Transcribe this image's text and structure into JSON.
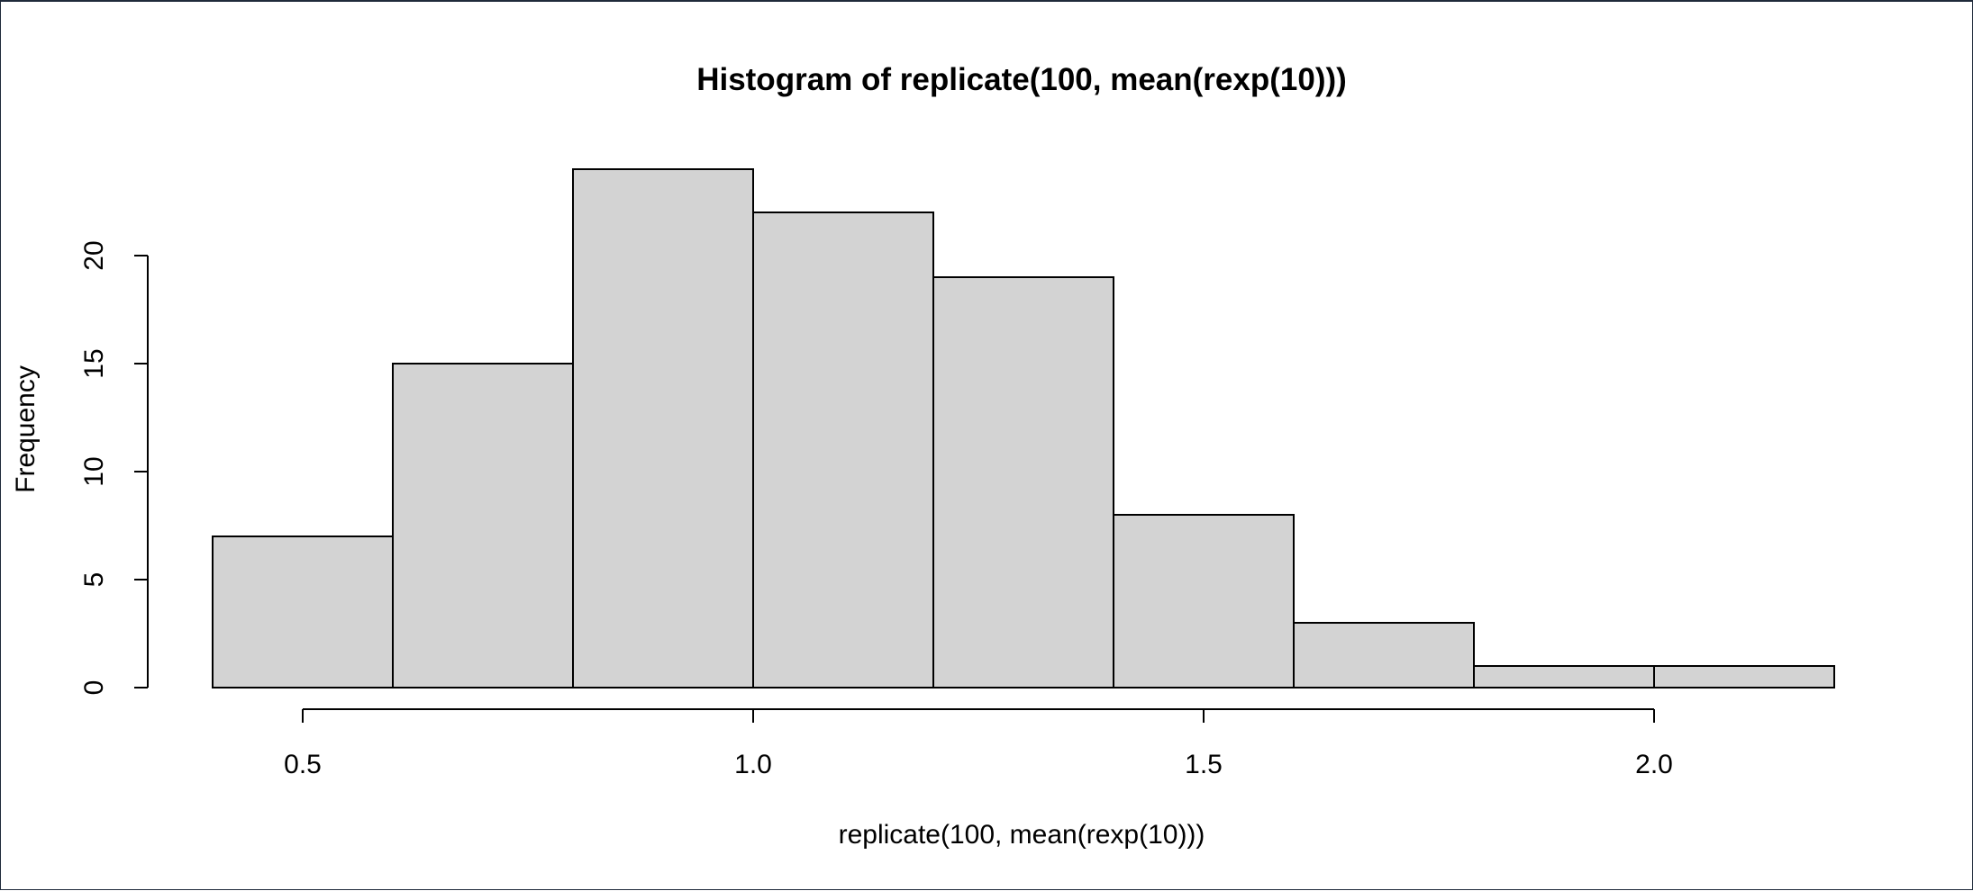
{
  "chart_data": {
    "type": "bar",
    "title": "Histogram of replicate(100, mean(rexp(10)))",
    "xlabel": "replicate(100, mean(rexp(10)))",
    "ylabel": "Frequency",
    "bins": [
      {
        "x0": 0.4,
        "x1": 0.6,
        "count": 7
      },
      {
        "x0": 0.6,
        "x1": 0.8,
        "count": 15
      },
      {
        "x0": 0.8,
        "x1": 1.0,
        "count": 24
      },
      {
        "x0": 1.0,
        "x1": 1.2,
        "count": 22
      },
      {
        "x0": 1.2,
        "x1": 1.4,
        "count": 19
      },
      {
        "x0": 1.4,
        "x1": 1.6,
        "count": 8
      },
      {
        "x0": 1.6,
        "x1": 1.8,
        "count": 3
      },
      {
        "x0": 1.8,
        "x1": 2.0,
        "count": 1
      },
      {
        "x0": 2.0,
        "x1": 2.2,
        "count": 1
      }
    ],
    "x_ticks": [
      0.5,
      1.0,
      1.5,
      2.0
    ],
    "x_tick_labels": [
      "0.5",
      "1.0",
      "1.5",
      "2.0"
    ],
    "y_ticks": [
      0,
      5,
      10,
      15,
      20
    ],
    "y_tick_labels": [
      "0",
      "5",
      "10",
      "15",
      "20"
    ],
    "xlim": [
      0.4,
      2.2
    ],
    "ylim": [
      0,
      24
    ],
    "grid": false,
    "bar_fill": "#d3d3d3",
    "bar_stroke": "#000000"
  }
}
